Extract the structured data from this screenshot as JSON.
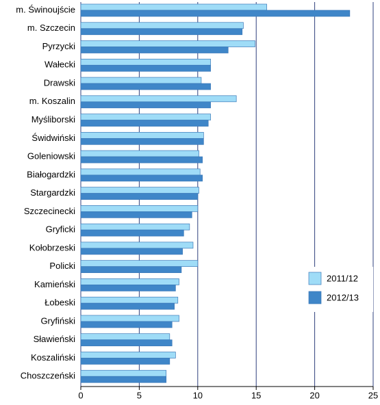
{
  "chart_data": {
    "type": "hbar",
    "categories": [
      "m. Świnoujście",
      "m. Szczecin",
      "Pyrzycki",
      "Wałecki",
      "Drawski",
      "m. Koszalin",
      "Myśliborski",
      "Świdwiński",
      "Goleniowski",
      "Białogardzki",
      "Stargardzki",
      "Szczecinecki",
      "Gryficki",
      "Kołobrzeski",
      "Policki",
      "Kamieński",
      "Łobeski",
      "Gryfiński",
      "Sławieński",
      "Koszaliński",
      "Choszczeński"
    ],
    "series": [
      {
        "name": "2011/12",
        "color": "#9fdcf7",
        "values": [
          15.9,
          13.9,
          14.9,
          11.1,
          10.3,
          13.3,
          11.1,
          10.5,
          10.1,
          10.2,
          10.1,
          10.0,
          9.3,
          9.6,
          10.0,
          8.4,
          8.3,
          8.4,
          7.6,
          8.1,
          7.3
        ]
      },
      {
        "name": "2012/13",
        "color": "#3f86c8",
        "values": [
          23.0,
          13.8,
          12.6,
          11.1,
          11.1,
          11.1,
          10.9,
          10.5,
          10.4,
          10.4,
          10.0,
          9.5,
          8.8,
          8.7,
          8.6,
          8.1,
          8.0,
          7.8,
          7.8,
          7.6,
          7.3
        ]
      }
    ],
    "xlim": [
      0,
      25
    ],
    "xticks": [
      0,
      5,
      10,
      15,
      20,
      25
    ],
    "grid": true,
    "legend": "lower right"
  }
}
